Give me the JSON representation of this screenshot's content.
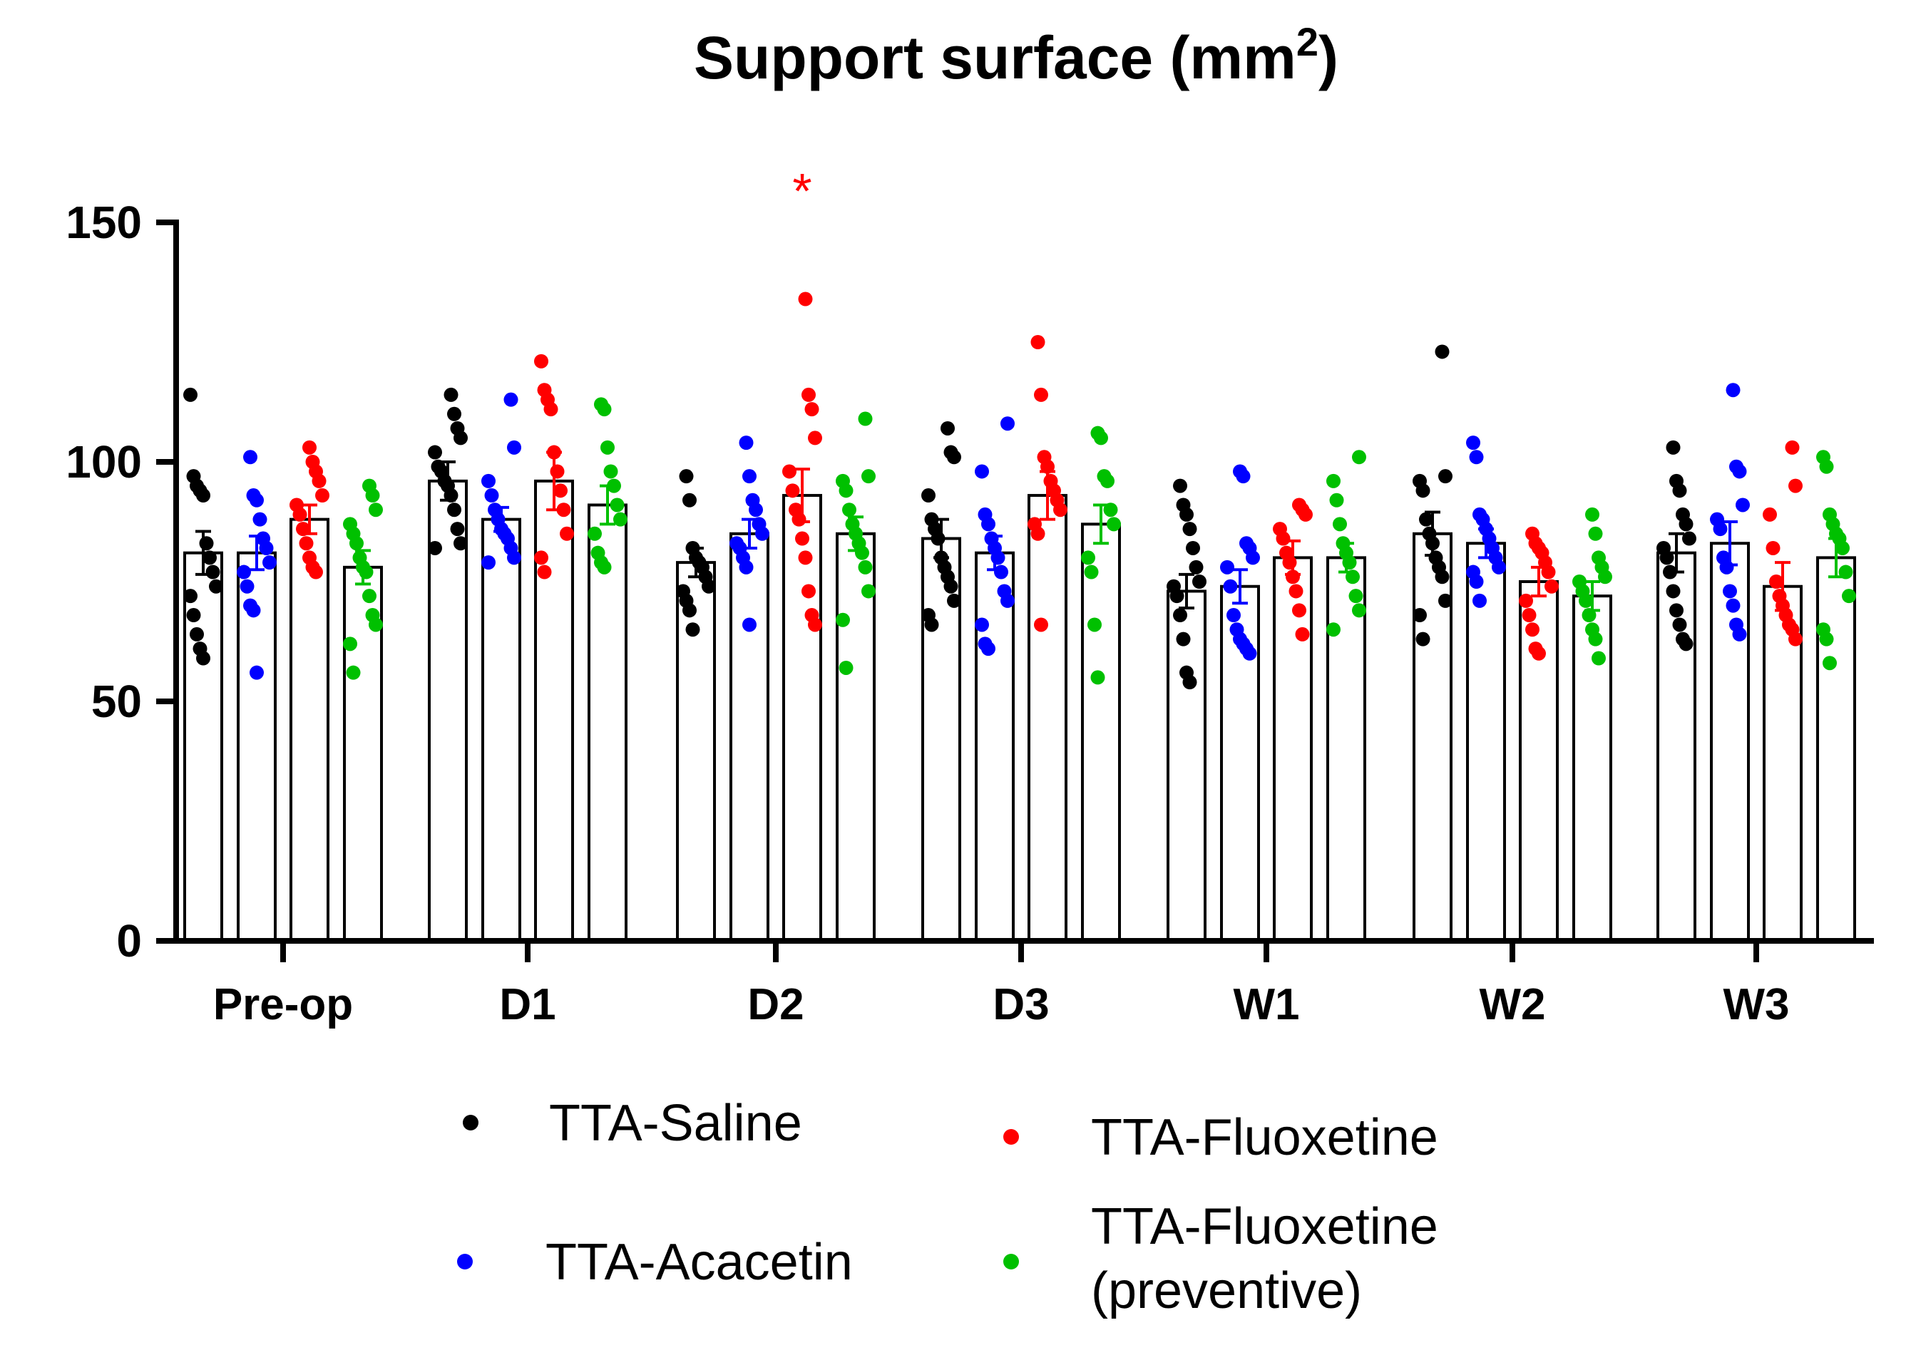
{
  "chart_data": {
    "type": "bar",
    "title": "Support surface (mm",
    "title_superscript": "2",
    "title_suffix": ")",
    "xlabel": "",
    "ylabel": "",
    "ylim": [
      0,
      150
    ],
    "yticks": [
      "0",
      "50",
      "100",
      "150"
    ],
    "categories": [
      "Pre-op",
      "D1",
      "D2",
      "D3",
      "W1",
      "W2",
      "W3"
    ],
    "annotation": {
      "text": "*",
      "category": "D2",
      "series": "TTA-Fluoxetine",
      "y": 158,
      "color": "#ff0000"
    },
    "series": [
      {
        "name": "TTA-Saline",
        "color": "#000000",
        "means": [
          81,
          96,
          79,
          84,
          73,
          85,
          81
        ],
        "sem": [
          4.5,
          4,
          3,
          4,
          3.5,
          4.5,
          4
        ],
        "points": [
          [
            114,
            97,
            95,
            94,
            93,
            83,
            80,
            77,
            74,
            72,
            68,
            64,
            61,
            59
          ],
          [
            114,
            110,
            107,
            105,
            102,
            99,
            98,
            96,
            95,
            93,
            90,
            86,
            83,
            82
          ],
          [
            97,
            92,
            82,
            80,
            79,
            78,
            76,
            74,
            73,
            71,
            69,
            65
          ],
          [
            107,
            102,
            101,
            93,
            88,
            86,
            84,
            80,
            78,
            76,
            74,
            71,
            68,
            66
          ],
          [
            95,
            91,
            89,
            86,
            82,
            78,
            75,
            74,
            72,
            68,
            63,
            56,
            54
          ],
          [
            123,
            97,
            96,
            94,
            88,
            85,
            83,
            80,
            78,
            76,
            71,
            68,
            63
          ],
          [
            103,
            96,
            94,
            89,
            87,
            84,
            82,
            80,
            77,
            73,
            69,
            66,
            63,
            62
          ]
        ]
      },
      {
        "name": "TTA-Acacetin",
        "color": "#0000ff",
        "means": [
          81,
          88,
          85,
          81,
          74,
          83,
          83
        ],
        "sem": [
          3.5,
          2.5,
          3,
          3.5,
          3.5,
          3,
          4.5
        ],
        "points": [
          [
            101,
            93,
            92,
            88,
            84,
            82,
            79,
            77,
            74,
            70,
            69,
            56
          ],
          [
            113,
            103,
            96,
            93,
            90,
            88,
            86,
            85,
            84,
            82,
            80,
            79
          ],
          [
            104,
            97,
            92,
            90,
            87,
            85,
            83,
            82,
            80,
            78,
            66
          ],
          [
            108,
            98,
            89,
            87,
            84,
            82,
            80,
            77,
            73,
            71,
            66,
            62,
            61
          ],
          [
            98,
            97,
            83,
            82,
            80,
            78,
            74,
            68,
            65,
            63,
            62,
            61,
            60
          ],
          [
            104,
            101,
            89,
            88,
            86,
            84,
            82,
            80,
            78,
            77,
            75,
            71
          ],
          [
            115,
            99,
            98,
            91,
            88,
            86,
            80,
            78,
            73,
            70,
            66,
            64
          ]
        ]
      },
      {
        "name": "TTA-Fluoxetine",
        "color": "#ff0000",
        "means": [
          88,
          96,
          93,
          93,
          80,
          75,
          74
        ],
        "sem": [
          3,
          6,
          5.5,
          5,
          3.5,
          3,
          5
        ],
        "points": [
          [
            103,
            100,
            98,
            96,
            93,
            91,
            89,
            86,
            83,
            80,
            78,
            77
          ],
          [
            121,
            115,
            113,
            111,
            102,
            98,
            94,
            90,
            85,
            80,
            77
          ],
          [
            134,
            114,
            111,
            105,
            98,
            94,
            90,
            88,
            84,
            80,
            73,
            68,
            66
          ],
          [
            125,
            114,
            101,
            99,
            96,
            94,
            92,
            90,
            87,
            85,
            66
          ],
          [
            91,
            90,
            89,
            86,
            84,
            81,
            79,
            76,
            73,
            69,
            64
          ],
          [
            85,
            83,
            82,
            81,
            79,
            77,
            74,
            71,
            68,
            65,
            61,
            60
          ],
          [
            103,
            95,
            89,
            82,
            75,
            72,
            70,
            68,
            66,
            65,
            63
          ]
        ]
      },
      {
        "name": "TTA-Fluoxetine\n(preventive)",
        "color": "#00c000",
        "means": [
          78,
          91,
          85,
          87,
          80,
          72,
          80
        ],
        "sem": [
          3.5,
          4,
          3.5,
          4,
          3,
          3,
          4
        ],
        "points": [
          [
            95,
            93,
            90,
            87,
            85,
            83,
            80,
            78,
            77,
            72,
            68,
            66,
            62,
            56
          ],
          [
            112,
            111,
            103,
            98,
            95,
            91,
            88,
            85,
            81,
            79,
            78
          ],
          [
            109,
            97,
            96,
            94,
            90,
            87,
            85,
            83,
            81,
            78,
            73,
            67,
            57
          ],
          [
            106,
            105,
            97,
            96,
            90,
            87,
            80,
            77,
            66,
            55
          ],
          [
            101,
            96,
            92,
            87,
            83,
            81,
            79,
            76,
            72,
            69,
            65
          ],
          [
            89,
            85,
            80,
            78,
            76,
            75,
            73,
            71,
            68,
            65,
            63,
            59
          ],
          [
            101,
            99,
            89,
            87,
            85,
            84,
            82,
            77,
            72,
            65,
            63,
            58
          ]
        ]
      }
    ],
    "legend": {
      "placement": "bottom",
      "entries": [
        {
          "label": "TTA-Saline",
          "color": "#000000"
        },
        {
          "label": "TTA-Fluoxetine",
          "color": "#ff0000"
        },
        {
          "label": "TTA-Acacetin",
          "color": "#0000ff"
        },
        {
          "label": "TTA-Fluoxetine",
          "label_line2": "(preventive)",
          "color": "#00c000"
        }
      ]
    }
  }
}
